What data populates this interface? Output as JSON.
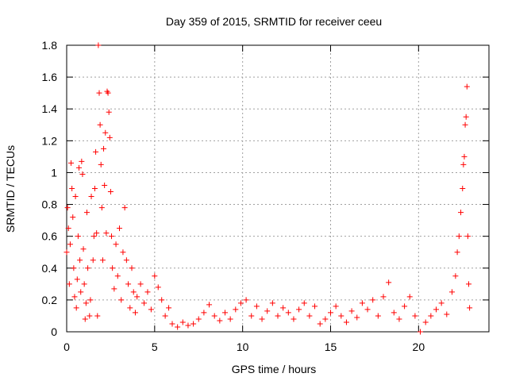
{
  "chart_data": {
    "type": "scatter",
    "title": "Day 359 of 2015, SRMTID for receiver ceeu",
    "xlabel": "GPS time / hours",
    "ylabel": "SRMTID / TECUs",
    "xlim": [
      0,
      24
    ],
    "ylim": [
      0,
      1.8
    ],
    "xticks": [
      0,
      5,
      10,
      15,
      20
    ],
    "xtick_labels": [
      "0",
      "5",
      "10",
      "15",
      "20"
    ],
    "yticks": [
      0,
      0.2,
      0.4,
      0.6,
      0.8,
      1.0,
      1.2,
      1.4,
      1.6,
      1.8
    ],
    "ytick_labels": [
      "0",
      "0.2",
      "0.4",
      "0.6",
      "0.8",
      "1",
      "1.2",
      "1.4",
      "1.6",
      "1.8"
    ],
    "grid": true,
    "marker": "+",
    "color": "#ff0000",
    "series": [
      {
        "name": "SRMTID",
        "points": [
          [
            0.0,
            0.5
          ],
          [
            0.05,
            0.78
          ],
          [
            0.1,
            0.65
          ],
          [
            0.15,
            0.3
          ],
          [
            0.2,
            0.55
          ],
          [
            0.25,
            1.06
          ],
          [
            0.3,
            0.9
          ],
          [
            0.35,
            0.72
          ],
          [
            0.4,
            0.4
          ],
          [
            0.45,
            0.22
          ],
          [
            0.5,
            0.85
          ],
          [
            0.55,
            0.15
          ],
          [
            0.6,
            0.33
          ],
          [
            0.65,
            0.6
          ],
          [
            0.7,
            1.03
          ],
          [
            0.75,
            0.45
          ],
          [
            0.8,
            0.25
          ],
          [
            0.85,
            1.07
          ],
          [
            0.9,
            0.99
          ],
          [
            0.95,
            0.52
          ],
          [
            1.0,
            0.3
          ],
          [
            1.05,
            0.08
          ],
          [
            1.1,
            0.18
          ],
          [
            1.15,
            0.75
          ],
          [
            1.2,
            0.4
          ],
          [
            1.3,
            0.1
          ],
          [
            1.35,
            0.2
          ],
          [
            1.4,
            0.85
          ],
          [
            1.5,
            0.45
          ],
          [
            1.55,
            0.6
          ],
          [
            1.6,
            0.9
          ],
          [
            1.65,
            1.13
          ],
          [
            1.7,
            0.62
          ],
          [
            1.75,
            0.1
          ],
          [
            1.8,
            1.8
          ],
          [
            1.85,
            1.5
          ],
          [
            1.9,
            1.3
          ],
          [
            1.95,
            1.05
          ],
          [
            2.0,
            0.78
          ],
          [
            2.05,
            0.45
          ],
          [
            2.1,
            1.15
          ],
          [
            2.15,
            0.92
          ],
          [
            2.2,
            1.25
          ],
          [
            2.25,
            0.62
          ],
          [
            2.3,
            1.51
          ],
          [
            2.35,
            1.5
          ],
          [
            2.4,
            1.38
          ],
          [
            2.45,
            1.22
          ],
          [
            2.5,
            0.88
          ],
          [
            2.55,
            0.6
          ],
          [
            2.6,
            0.4
          ],
          [
            2.7,
            0.27
          ],
          [
            2.8,
            0.55
          ],
          [
            2.9,
            0.35
          ],
          [
            3.0,
            0.65
          ],
          [
            3.1,
            0.2
          ],
          [
            3.2,
            0.5
          ],
          [
            3.3,
            0.78
          ],
          [
            3.4,
            0.45
          ],
          [
            3.5,
            0.3
          ],
          [
            3.6,
            0.15
          ],
          [
            3.7,
            0.4
          ],
          [
            3.8,
            0.25
          ],
          [
            3.9,
            0.12
          ],
          [
            4.0,
            0.22
          ],
          [
            4.2,
            0.3
          ],
          [
            4.4,
            0.18
          ],
          [
            4.6,
            0.25
          ],
          [
            4.8,
            0.14
          ],
          [
            5.0,
            0.35
          ],
          [
            5.2,
            0.28
          ],
          [
            5.4,
            0.2
          ],
          [
            5.6,
            0.1
          ],
          [
            5.8,
            0.15
          ],
          [
            6.0,
            0.05
          ],
          [
            6.3,
            0.03
          ],
          [
            6.6,
            0.06
          ],
          [
            6.9,
            0.04
          ],
          [
            7.2,
            0.05
          ],
          [
            7.5,
            0.08
          ],
          [
            7.8,
            0.12
          ],
          [
            8.1,
            0.17
          ],
          [
            8.4,
            0.1
          ],
          [
            8.7,
            0.07
          ],
          [
            9.0,
            0.12
          ],
          [
            9.3,
            0.08
          ],
          [
            9.6,
            0.14
          ],
          [
            9.9,
            0.18
          ],
          [
            10.2,
            0.2
          ],
          [
            10.5,
            0.1
          ],
          [
            10.8,
            0.16
          ],
          [
            11.1,
            0.08
          ],
          [
            11.4,
            0.13
          ],
          [
            11.7,
            0.18
          ],
          [
            12.0,
            0.1
          ],
          [
            12.3,
            0.15
          ],
          [
            12.6,
            0.12
          ],
          [
            12.9,
            0.08
          ],
          [
            13.2,
            0.14
          ],
          [
            13.5,
            0.18
          ],
          [
            13.8,
            0.1
          ],
          [
            14.1,
            0.16
          ],
          [
            14.4,
            0.05
          ],
          [
            14.7,
            0.08
          ],
          [
            15.0,
            0.12
          ],
          [
            15.3,
            0.16
          ],
          [
            15.6,
            0.1
          ],
          [
            15.9,
            0.06
          ],
          [
            16.2,
            0.13
          ],
          [
            16.5,
            0.09
          ],
          [
            16.8,
            0.18
          ],
          [
            17.1,
            0.14
          ],
          [
            17.4,
            0.2
          ],
          [
            17.7,
            0.1
          ],
          [
            18.0,
            0.22
          ],
          [
            18.3,
            0.31
          ],
          [
            18.6,
            0.12
          ],
          [
            18.9,
            0.08
          ],
          [
            19.2,
            0.16
          ],
          [
            19.5,
            0.22
          ],
          [
            19.8,
            0.1
          ],
          [
            20.1,
            0.0
          ],
          [
            20.4,
            0.06
          ],
          [
            20.7,
            0.1
          ],
          [
            21.0,
            0.14
          ],
          [
            21.3,
            0.18
          ],
          [
            21.6,
            0.11
          ],
          [
            21.9,
            0.25
          ],
          [
            22.1,
            0.35
          ],
          [
            22.2,
            0.5
          ],
          [
            22.3,
            0.6
          ],
          [
            22.4,
            0.75
          ],
          [
            22.5,
            0.9
          ],
          [
            22.55,
            1.05
          ],
          [
            22.6,
            1.1
          ],
          [
            22.65,
            1.3
          ],
          [
            22.7,
            1.35
          ],
          [
            22.75,
            1.54
          ],
          [
            22.8,
            0.6
          ],
          [
            22.85,
            0.3
          ],
          [
            22.9,
            0.15
          ]
        ]
      }
    ]
  }
}
